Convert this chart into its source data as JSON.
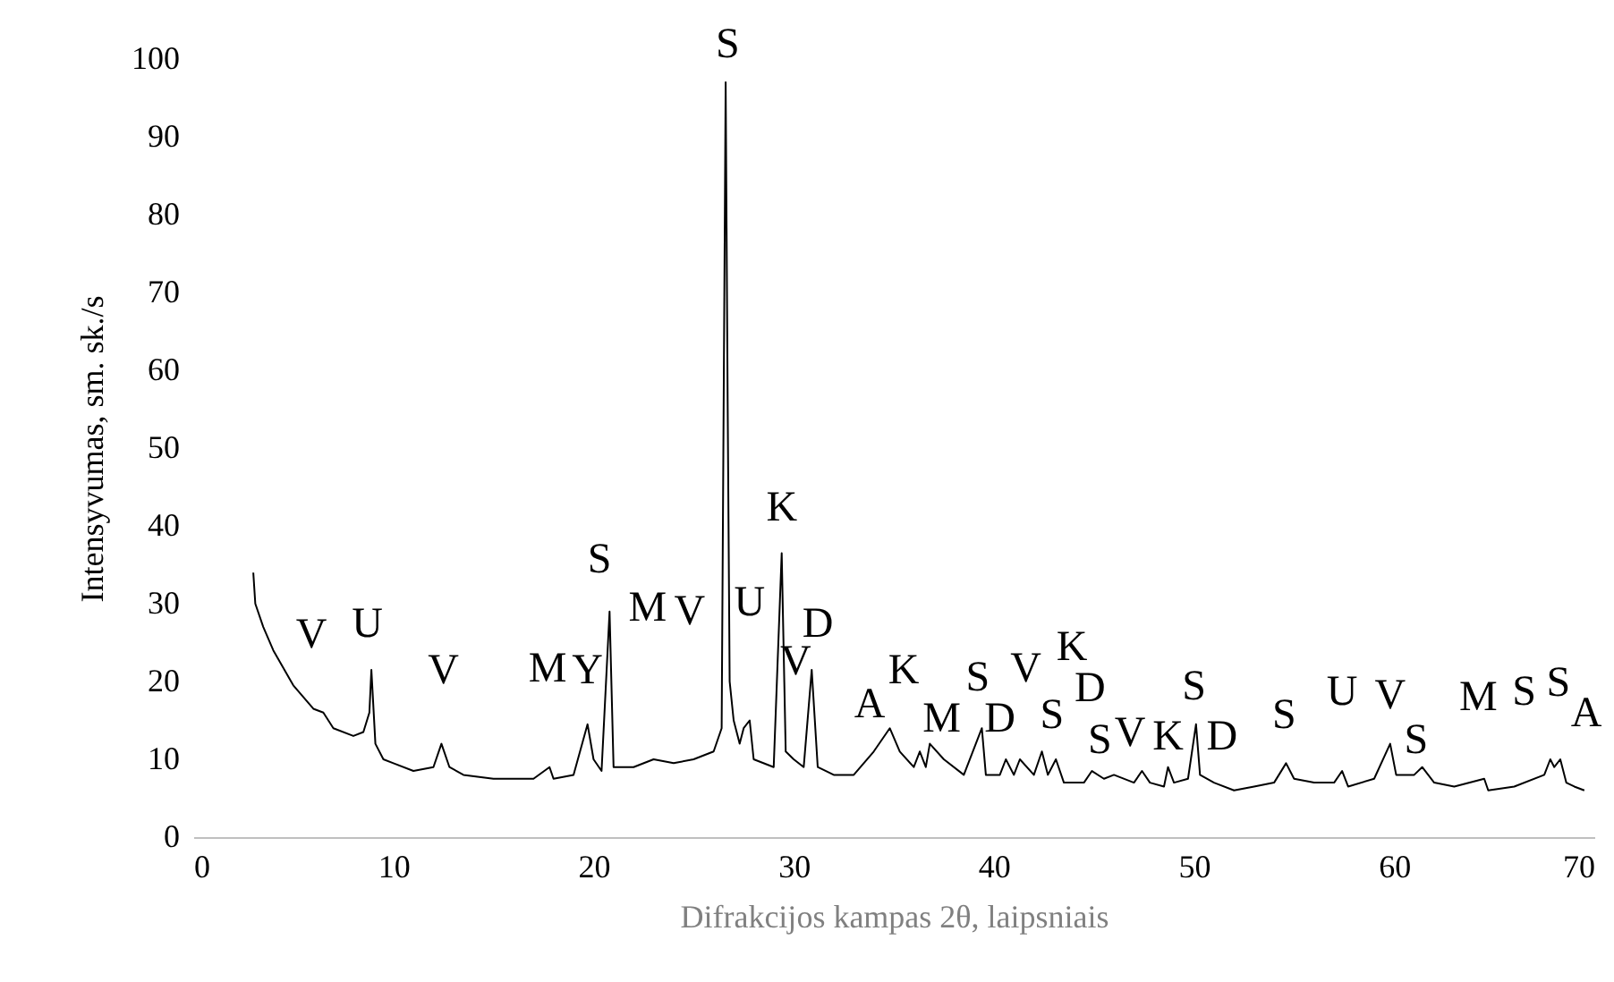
{
  "chart_data": {
    "type": "line",
    "xlabel": "Difrakcijos kampas 2θ, laipsniais",
    "ylabel": "Intensyvumas, sm. sk./s",
    "xlim": [
      0,
      70
    ],
    "xticks": [
      0,
      10,
      20,
      30,
      40,
      50,
      60,
      70
    ],
    "ylim": [
      0,
      100
    ],
    "yticks": [
      0,
      10,
      20,
      30,
      40,
      50,
      60,
      70,
      80,
      90,
      100
    ],
    "grid": false,
    "series": [
      {
        "color": "#000000",
        "x": [
          3,
          3.1,
          3.5,
          4,
          5,
          6,
          6.5,
          7,
          8,
          8.5,
          8.8,
          8.9,
          9.1,
          9.5,
          10,
          11,
          12,
          12.4,
          12.8,
          13.5,
          15,
          17,
          17.8,
          18,
          19,
          19.7,
          20,
          20.4,
          20.8,
          21,
          22,
          23,
          24,
          25,
          26,
          26.4,
          26.6,
          26.7,
          26.8,
          27,
          27.3,
          27.5,
          27.8,
          28,
          29,
          29.4,
          29.6,
          30,
          30.5,
          30.9,
          31.2,
          32,
          33,
          34,
          34.8,
          35.3,
          36,
          36.3,
          36.6,
          36.8,
          37.5,
          38.5,
          39.4,
          39.6,
          40.3,
          40.6,
          41,
          41.3,
          42,
          42.4,
          42.7,
          43.1,
          43.5,
          44.5,
          44.9,
          45.5,
          46,
          47,
          47.4,
          47.8,
          48.5,
          48.7,
          49,
          49.7,
          50.1,
          50.3,
          51,
          52,
          53,
          54,
          54.6,
          55,
          56,
          57,
          57.4,
          57.7,
          59,
          59.8,
          60.1,
          61,
          61.4,
          62,
          63,
          64.5,
          64.7,
          66,
          67.5,
          67.8,
          68,
          68.3,
          68.6,
          69,
          69.5
        ],
        "values": [
          34,
          30,
          27,
          24,
          19.5,
          16.5,
          16,
          14,
          13,
          13.5,
          16,
          21.5,
          12,
          10,
          9.5,
          8.5,
          9,
          12,
          9,
          8,
          7.5,
          7.5,
          9,
          7.5,
          8,
          14.5,
          10,
          8.5,
          29,
          9,
          9,
          10,
          9.5,
          10,
          11,
          14,
          97,
          56,
          20,
          15,
          12,
          14,
          15,
          10,
          9,
          36.5,
          11,
          10,
          9,
          21.5,
          9,
          8,
          8,
          11,
          14,
          11,
          9,
          11,
          9,
          12,
          10,
          8,
          14,
          8,
          8,
          10,
          8,
          10,
          8,
          11,
          8,
          10,
          7,
          7,
          8.5,
          7.5,
          8,
          7,
          8.5,
          7,
          6.5,
          9,
          7,
          7.5,
          14.5,
          8,
          7,
          6,
          6.5,
          7,
          9.5,
          7.5,
          7,
          7,
          8.5,
          6.5,
          7.5,
          12,
          8,
          8,
          9,
          7,
          6.5,
          7.5,
          6,
          6.5,
          8,
          10,
          9,
          10,
          7,
          6.5,
          6
        ]
      }
    ],
    "annotations": [
      "V",
      "U",
      "V",
      "M",
      "Y",
      "S",
      "M",
      "V",
      "S",
      "U",
      "K",
      "V",
      "D",
      "A",
      "K",
      "M",
      "S",
      "D",
      "V",
      "S",
      "K",
      "D",
      "S",
      "V",
      "K",
      "S",
      "D",
      "S",
      "U",
      "V",
      "S",
      "M",
      "S",
      "S",
      "A"
    ]
  }
}
